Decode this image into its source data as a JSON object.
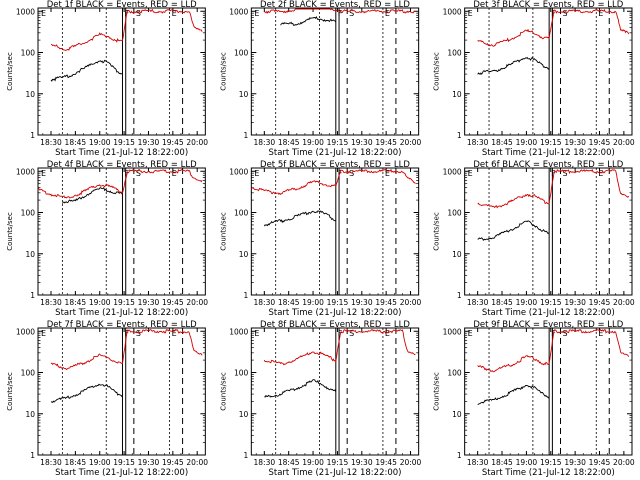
{
  "chart_data": [
    {
      "type": "line",
      "title": "Det 1f BLACK = Events, RED = LLD",
      "xlabel": "Start Time (21-Jul-12 18:22:00)",
      "ylabel": "Counts/sec",
      "xticks": [
        "18:30",
        "18:45",
        "19:00",
        "19:15",
        "19:30",
        "19:45",
        "20:00"
      ],
      "yticks": [
        "1",
        "10",
        "100",
        "1000"
      ],
      "yscale": "log",
      "ylim": [
        1,
        1200
      ],
      "xlim": [
        "18:22",
        "20:05"
      ],
      "annotations": [
        "F",
        "S",
        "E"
      ],
      "series": [
        {
          "name": "Events",
          "color": "#000000",
          "x": [
            "18:30",
            "18:40",
            "18:50",
            "19:00",
            "19:05",
            "19:10",
            "19:14"
          ],
          "values": [
            22,
            26,
            40,
            65,
            55,
            38,
            30
          ]
        },
        {
          "name": "LLD",
          "color": "#d40000",
          "x": [
            "18:30",
            "18:40",
            "18:50",
            "19:00",
            "19:05",
            "19:10",
            "19:14",
            "19:17",
            "19:21",
            "19:55",
            "19:58",
            "20:03"
          ],
          "values": [
            150,
            120,
            170,
            270,
            250,
            200,
            180,
            1000,
            1000,
            1000,
            400,
            320
          ]
        }
      ]
    },
    {
      "type": "line",
      "title": "Det 2f BLACK = Events, RED = LLD",
      "xlabel": "Start Time (21-Jul-12 18:22:00)",
      "ylabel": "Counts/sec",
      "xticks": [
        "18:30",
        "18:45",
        "19:00",
        "19:15",
        "19:30",
        "19:45",
        "20:00"
      ],
      "yticks": [
        "1",
        "10",
        "100",
        "1000"
      ],
      "yscale": "log",
      "ylim": [
        1,
        1200
      ],
      "xlim": [
        "18:22",
        "20:05"
      ],
      "annotations": [
        "F",
        "S",
        "E"
      ],
      "series": [
        {
          "name": "Events",
          "color": "#000000",
          "x": [
            "18:40",
            "18:50",
            "19:00",
            "19:05",
            "19:10",
            "19:14"
          ],
          "values": [
            480,
            500,
            680,
            650,
            600,
            550
          ]
        },
        {
          "name": "LLD",
          "color": "#d40000",
          "x": [
            "18:30",
            "18:40",
            "18:50",
            "19:00",
            "19:05",
            "19:10",
            "19:14",
            "19:17",
            "19:21",
            "19:55",
            "19:58",
            "20:03"
          ],
          "values": [
            1000,
            980,
            1100,
            1500,
            1400,
            1200,
            1100,
            1000,
            1000,
            1000,
            1000,
            1000
          ]
        }
      ]
    },
    {
      "type": "line",
      "title": "Det 3f BLACK = Events, RED = LLD",
      "xlabel": "Start Time (21-Jul-12 18:22:00)",
      "ylabel": "Counts/sec",
      "xticks": [
        "18:30",
        "18:45",
        "19:00",
        "19:15",
        "19:30",
        "19:45",
        "20:00"
      ],
      "yticks": [
        "1",
        "10",
        "100",
        "1000"
      ],
      "yscale": "log",
      "ylim": [
        1,
        1200
      ],
      "xlim": [
        "18:22",
        "20:05"
      ],
      "annotations": [
        "F",
        "S",
        "E"
      ],
      "series": [
        {
          "name": "Events",
          "color": "#000000",
          "x": [
            "18:30",
            "18:40",
            "18:50",
            "19:00",
            "19:05",
            "19:10",
            "19:14"
          ],
          "values": [
            32,
            35,
            50,
            80,
            65,
            48,
            42
          ]
        },
        {
          "name": "LLD",
          "color": "#d40000",
          "x": [
            "18:30",
            "18:40",
            "18:50",
            "19:00",
            "19:05",
            "19:10",
            "19:14",
            "19:17",
            "19:21",
            "19:55",
            "19:58",
            "20:03"
          ],
          "values": [
            190,
            150,
            210,
            330,
            300,
            230,
            210,
            1000,
            1000,
            1000,
            350,
            280
          ]
        }
      ]
    },
    {
      "type": "line",
      "title": "Det 4f BLACK = Events, RED = LLD",
      "xlabel": "Start Time (21-Jul-12 18:22:00)",
      "ylabel": "Counts/sec",
      "xticks": [
        "18:30",
        "18:45",
        "19:00",
        "19:15",
        "19:30",
        "19:45",
        "20:00"
      ],
      "yticks": [
        "1",
        "10",
        "100",
        "1000"
      ],
      "yscale": "log",
      "ylim": [
        1,
        1200
      ],
      "xlim": [
        "18:22",
        "20:05"
      ],
      "annotations": [
        "F",
        "S",
        "E"
      ],
      "series": [
        {
          "name": "Events",
          "color": "#000000",
          "x": [
            "18:37",
            "18:45",
            "18:55",
            "19:02",
            "19:08",
            "19:14"
          ],
          "values": [
            180,
            190,
            320,
            380,
            320,
            270
          ]
        },
        {
          "name": "LLD",
          "color": "#d40000",
          "x": [
            "18:22",
            "18:30",
            "18:40",
            "18:50",
            "19:00",
            "19:05",
            "19:10",
            "19:14",
            "19:17",
            "19:21",
            "19:55",
            "19:58",
            "20:03"
          ],
          "values": [
            350,
            280,
            220,
            320,
            480,
            440,
            360,
            310,
            1000,
            1000,
            1000,
            700,
            600
          ]
        }
      ]
    },
    {
      "type": "line",
      "title": "Det 5f BLACK = Events, RED = LLD",
      "xlabel": "Start Time (21-Jul-12 18:22:00)",
      "ylabel": "Counts/sec",
      "xticks": [
        "18:30",
        "18:45",
        "19:00",
        "19:15",
        "19:30",
        "19:45",
        "20:00"
      ],
      "yticks": [
        "1",
        "10",
        "100",
        "1000"
      ],
      "yscale": "log",
      "ylim": [
        1,
        1200
      ],
      "xlim": [
        "18:22",
        "20:05"
      ],
      "annotations": [
        "F",
        "S",
        "E"
      ],
      "series": [
        {
          "name": "Events",
          "color": "#000000",
          "x": [
            "18:30",
            "18:40",
            "18:50",
            "19:00",
            "19:05",
            "19:10",
            "19:14"
          ],
          "values": [
            50,
            62,
            80,
            110,
            100,
            80,
            65
          ]
        },
        {
          "name": "LLD",
          "color": "#d40000",
          "x": [
            "18:22",
            "18:30",
            "18:40",
            "18:50",
            "19:00",
            "19:05",
            "19:10",
            "19:14",
            "19:17",
            "19:21",
            "19:55",
            "19:58",
            "20:03"
          ],
          "values": [
            420,
            330,
            300,
            380,
            550,
            520,
            450,
            420,
            1000,
            1000,
            1000,
            700,
            500
          ]
        }
      ]
    },
    {
      "type": "line",
      "title": "Det 6f BLACK = Events, RED = LLD",
      "xlabel": "Start Time (21-Jul-12 18:22:00)",
      "ylabel": "Counts/sec",
      "xticks": [
        "18:30",
        "18:45",
        "19:00",
        "19:15",
        "19:30",
        "19:45",
        "20:00"
      ],
      "yticks": [
        "1",
        "10",
        "100",
        "1000"
      ],
      "yscale": "log",
      "ylim": [
        1,
        1200
      ],
      "xlim": [
        "18:22",
        "20:05"
      ],
      "annotations": [
        "F",
        "S",
        "E"
      ],
      "series": [
        {
          "name": "Events",
          "color": "#000000",
          "x": [
            "18:30",
            "18:40",
            "18:50",
            "19:00",
            "19:05",
            "19:10",
            "19:14"
          ],
          "values": [
            22,
            25,
            38,
            60,
            50,
            36,
            30
          ]
        },
        {
          "name": "LLD",
          "color": "#d40000",
          "x": [
            "18:30",
            "18:40",
            "18:50",
            "19:00",
            "19:05",
            "19:10",
            "19:14",
            "19:17",
            "19:21",
            "19:55",
            "19:58",
            "20:03"
          ],
          "values": [
            170,
            130,
            180,
            280,
            250,
            190,
            170,
            1000,
            1000,
            1000,
            300,
            250
          ]
        }
      ]
    },
    {
      "type": "line",
      "title": "Det 7f BLACK = Events, RED = LLD",
      "xlabel": "Start Time (21-Jul-12 18:22:00)",
      "ylabel": "Counts/sec",
      "xticks": [
        "18:30",
        "18:45",
        "19:00",
        "19:15",
        "19:30",
        "19:45",
        "20:00"
      ],
      "yticks": [
        "1",
        "10",
        "100",
        "1000"
      ],
      "yscale": "log",
      "ylim": [
        1,
        1200
      ],
      "xlim": [
        "18:22",
        "20:05"
      ],
      "annotations": [
        "F",
        "S",
        "E"
      ],
      "series": [
        {
          "name": "Events",
          "color": "#000000",
          "x": [
            "18:30",
            "18:40",
            "18:50",
            "19:00",
            "19:05",
            "19:10",
            "19:14"
          ],
          "values": [
            20,
            24,
            35,
            55,
            45,
            32,
            28
          ]
        },
        {
          "name": "LLD",
          "color": "#d40000",
          "x": [
            "18:30",
            "18:40",
            "18:50",
            "19:00",
            "19:05",
            "19:10",
            "19:14",
            "19:17",
            "19:21",
            "19:55",
            "19:58",
            "20:03"
          ],
          "values": [
            160,
            125,
            170,
            260,
            240,
            180,
            160,
            1000,
            1000,
            1000,
            320,
            260
          ]
        }
      ]
    },
    {
      "type": "line",
      "title": "Det 8f BLACK = Events, RED = LLD",
      "xlabel": "Start Time (21-Jul-12 18:22:00)",
      "ylabel": "Counts/sec",
      "xticks": [
        "18:30",
        "18:45",
        "19:00",
        "19:15",
        "19:30",
        "19:45",
        "20:00"
      ],
      "yticks": [
        "1",
        "10",
        "100",
        "1000"
      ],
      "yscale": "log",
      "ylim": [
        1,
        1200
      ],
      "xlim": [
        "18:22",
        "20:05"
      ],
      "annotations": [
        "F",
        "S",
        "E"
      ],
      "series": [
        {
          "name": "Events",
          "color": "#000000",
          "x": [
            "18:30",
            "18:40",
            "18:50",
            "19:00",
            "19:05",
            "19:10",
            "19:14"
          ],
          "values": [
            25,
            30,
            42,
            62,
            55,
            40,
            34
          ]
        },
        {
          "name": "LLD",
          "color": "#d40000",
          "x": [
            "18:30",
            "18:40",
            "18:50",
            "19:00",
            "19:05",
            "19:10",
            "19:14",
            "19:17",
            "19:21",
            "19:55",
            "19:58",
            "20:03"
          ],
          "values": [
            200,
            160,
            210,
            320,
            290,
            230,
            200,
            1000,
            1000,
            1000,
            350,
            280
          ]
        }
      ]
    },
    {
      "type": "line",
      "title": "Det 9f BLACK = Events, RED = LLD",
      "xlabel": "Start Time (21-Jul-12 18:22:00)",
      "ylabel": "Counts/sec",
      "xticks": [
        "18:30",
        "18:45",
        "19:00",
        "19:15",
        "19:30",
        "19:45",
        "20:00"
      ],
      "yticks": [
        "1",
        "10",
        "100",
        "1000"
      ],
      "yscale": "log",
      "ylim": [
        1,
        1200
      ],
      "xlim": [
        "18:22",
        "20:05"
      ],
      "annotations": [
        "F",
        "S",
        "E"
      ],
      "series": [
        {
          "name": "Events",
          "color": "#000000",
          "x": [
            "18:30",
            "18:40",
            "18:50",
            "19:00",
            "19:05",
            "19:10",
            "19:14"
          ],
          "values": [
            18,
            22,
            32,
            50,
            42,
            30,
            26
          ]
        },
        {
          "name": "LLD",
          "color": "#d40000",
          "x": [
            "18:30",
            "18:40",
            "18:50",
            "19:00",
            "19:05",
            "19:10",
            "19:14",
            "19:17",
            "19:21",
            "19:55",
            "19:58",
            "20:03"
          ],
          "values": [
            140,
            110,
            150,
            240,
            220,
            170,
            150,
            1000,
            1000,
            1000,
            300,
            240
          ]
        }
      ]
    }
  ]
}
